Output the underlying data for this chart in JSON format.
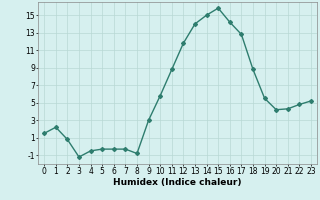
{
  "x": [
    0,
    1,
    2,
    3,
    4,
    5,
    6,
    7,
    8,
    9,
    10,
    11,
    12,
    13,
    14,
    15,
    16,
    17,
    18,
    19,
    20,
    21,
    22,
    23
  ],
  "y": [
    1.5,
    2.2,
    0.8,
    -1.2,
    -0.5,
    -0.3,
    -0.3,
    -0.3,
    -0.8,
    3.0,
    5.8,
    8.8,
    11.8,
    14.0,
    15.0,
    15.8,
    14.2,
    12.8,
    8.8,
    5.5,
    4.2,
    4.3,
    4.8,
    5.2
  ],
  "line_color": "#2e7d6e",
  "marker": "D",
  "marker_size": 2,
  "bg_color": "#d6f0ef",
  "grid_color": "#b8d8d4",
  "xlabel": "Humidex (Indice chaleur)",
  "xlim": [
    -0.5,
    23.5
  ],
  "ylim": [
    -2,
    16.5
  ],
  "yticks": [
    -1,
    1,
    3,
    5,
    7,
    9,
    11,
    13,
    15
  ],
  "xticks": [
    0,
    1,
    2,
    3,
    4,
    5,
    6,
    7,
    8,
    9,
    10,
    11,
    12,
    13,
    14,
    15,
    16,
    17,
    18,
    19,
    20,
    21,
    22,
    23
  ],
  "xtick_labels": [
    "0",
    "1",
    "2",
    "3",
    "4",
    "5",
    "6",
    "7",
    "8",
    "9",
    "10",
    "11",
    "12",
    "13",
    "14",
    "15",
    "16",
    "17",
    "18",
    "19",
    "20",
    "21",
    "22",
    "23"
  ],
  "line_width": 1.0,
  "tick_fontsize": 5.5,
  "xlabel_fontsize": 6.5
}
